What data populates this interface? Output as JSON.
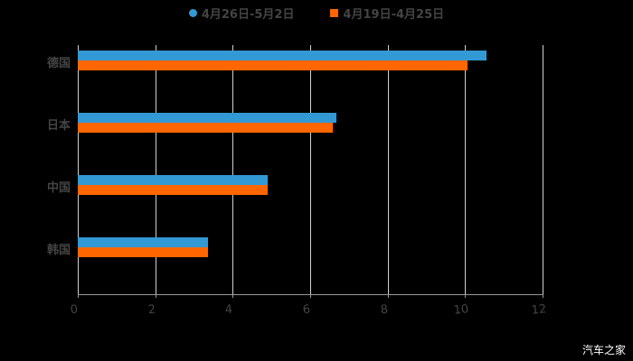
{
  "legend": [
    {
      "label": "4月26日-5月2日",
      "color": "#3399d4",
      "shape": "circle"
    },
    {
      "label": "4月19日-4月25日",
      "color": "#ff6600",
      "shape": "square"
    }
  ],
  "watermark": "汽车之家",
  "chart_data": {
    "type": "bar",
    "orientation": "horizontal",
    "title": "",
    "xlabel": "",
    "ylabel": "",
    "categories": [
      "德国",
      "日本",
      "中国",
      "韩国"
    ],
    "series": [
      {
        "name": "4月26日-5月2日",
        "color": "#3399d4",
        "values": [
          10.55,
          6.68,
          4.9,
          3.36
        ]
      },
      {
        "name": "4月19日-4月25日",
        "color": "#ff6600",
        "values": [
          10.06,
          6.58,
          4.9,
          3.36
        ]
      }
    ],
    "xlim": [
      0,
      12
    ],
    "x_ticks": [
      "0",
      "2",
      "4",
      "6",
      "8",
      "10",
      "12"
    ],
    "grid": true,
    "legend_position": "top"
  }
}
